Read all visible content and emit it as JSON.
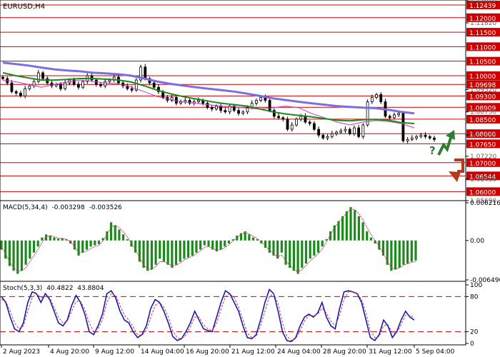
{
  "symbol_header": "EURUSD,H4",
  "macd": {
    "label": "MACD(5,34,4)",
    "main": "-0.003298",
    "signal": "-0.003526",
    "scale": [
      "0.006216",
      "0.00",
      "-0.006496"
    ]
  },
  "stoch": {
    "label": "Stoch(5,3,3)",
    "main": "40.4822",
    "signal": "43.8804",
    "scale": [
      "100",
      "80",
      "20",
      "0"
    ]
  },
  "price_scale": {
    "gray": [
      "1.12610",
      "1.11820",
      "1.09520",
      "1.08750",
      "1.07955",
      "1.07220",
      "1.06430",
      "1.05690"
    ],
    "levels": [
      "1.12439",
      "1.12000",
      "1.11500",
      "1.11000",
      "1.10500",
      "1.10000",
      "1.09698",
      "1.09300",
      "1.08909",
      "1.08500",
      "1.08000",
      "1.07650",
      "1.07000",
      "1.06544",
      "1.06000"
    ]
  },
  "time_axis": [
    "2 Aug 2023",
    "4 Aug 20:00",
    "9 Aug 12:00",
    "14 Aug 04:00",
    "16 Aug 20:00",
    "21 Aug 12:00",
    "24 Aug 04:00",
    "28 Aug 20:00",
    "31 Aug 12:00",
    "5 Sep 04:00"
  ],
  "forecast_mark": "?",
  "colors": {
    "level_line": "#cc0000",
    "level_label_bg": "#cc0000",
    "candle": "#000000",
    "ma_fast": "#cc33cc",
    "ma_mid": "#1a8a1a",
    "ma_slow": "#7b6fe0",
    "macd_hist": "#1a8a1a",
    "macd_signal": "#cc3366",
    "stoch_main": "#1a1aa6",
    "stoch_signal": "#cc3366",
    "arrow_up": "#2e7d32",
    "arrow_down": "#b23a1e"
  },
  "chart_data": [
    {
      "type": "candlestick",
      "title": "EURUSD,H4",
      "x_range": [
        "2 Aug 2023",
        "5 Sep 04:00"
      ],
      "ylim": [
        1.0569,
        1.1261
      ],
      "horizontal_levels": [
        1.12439,
        1.12,
        1.115,
        1.11,
        1.105,
        1.1,
        1.09698,
        1.093,
        1.08909,
        1.085,
        1.08,
        1.0765,
        1.07,
        1.06544,
        1.06
      ],
      "close_approx": [
        1.099,
        1.0975,
        1.0945,
        1.094,
        1.093,
        1.0955,
        1.0965,
        1.098,
        1.101,
        1.099,
        1.0975,
        1.0965,
        1.097,
        1.0955,
        1.0975,
        1.0985,
        1.097,
        1.096,
        1.098,
        1.1,
        1.0985,
        1.097,
        1.0965,
        1.098,
        1.0985,
        1.0995,
        1.0975,
        1.0965,
        1.0955,
        1.095,
        1.0985,
        1.103,
        1.099,
        1.0975,
        1.096,
        1.0945,
        1.0925,
        1.0915,
        1.0925,
        1.0905,
        1.091,
        1.0915,
        1.0905,
        1.091,
        1.0915,
        1.0905,
        1.089,
        1.0885,
        1.0895,
        1.088,
        1.0875,
        1.0895,
        1.088,
        1.087,
        1.0875,
        1.089,
        1.0905,
        1.0915,
        1.0925,
        1.0915,
        1.088,
        1.086,
        1.0855,
        1.085,
        1.0815,
        1.083,
        1.085,
        1.086,
        1.084,
        1.0835,
        1.0815,
        1.0795,
        1.0785,
        1.079,
        1.08,
        1.0805,
        1.081,
        1.0815,
        1.08,
        1.082,
        1.079,
        1.083,
        1.091,
        1.0925,
        1.0935,
        1.091,
        1.086,
        1.0855,
        1.0865,
        1.087,
        1.0775,
        1.078,
        1.0785,
        1.079,
        1.0795,
        1.079,
        1.0785,
        1.078
      ],
      "moving_averages": [
        {
          "color": "#cc33cc",
          "values": [
            1.0985,
            1.0979,
            1.097,
            1.096,
            1.097,
            1.0978,
            1.0985,
            1.098,
            1.0975,
            1.0972,
            1.096,
            1.0945,
            1.0928,
            1.0918,
            1.091,
            1.0905,
            1.09,
            1.0895,
            1.0893,
            1.0888,
            1.0885,
            1.089,
            1.0895,
            1.089,
            1.087,
            1.0855,
            1.084,
            1.083,
            1.084,
            1.0845,
            1.0842,
            1.0835,
            1.082
          ]
        },
        {
          "color": "#1a8a1a",
          "values": [
            1.101,
            1.1,
            1.0992,
            1.0985,
            1.0985,
            1.0987,
            1.099,
            1.099,
            1.0988,
            1.0985,
            1.0978,
            1.0965,
            1.095,
            1.0938,
            1.0928,
            1.092,
            1.0912,
            1.0905,
            1.09,
            1.0895,
            1.0885,
            1.0875,
            1.0868,
            1.0863,
            1.0858,
            1.0852,
            1.0846,
            1.0844,
            1.0848,
            1.0849,
            1.0846,
            1.0838,
            1.0835
          ]
        },
        {
          "color": "#7b6fe0",
          "values": [
            1.1045,
            1.104,
            1.1035,
            1.1028,
            1.1022,
            1.1018,
            1.1015,
            1.101,
            1.1008,
            1.1005,
            1.1,
            1.099,
            1.098,
            1.0972,
            1.0966,
            1.096,
            1.0955,
            1.095,
            1.0945,
            1.0938,
            1.093,
            1.0922,
            1.0916,
            1.091,
            1.0905,
            1.09,
            1.0895,
            1.0892,
            1.089,
            1.0888,
            1.0882,
            1.0875,
            1.087
          ]
        }
      ]
    },
    {
      "type": "bar",
      "title": "MACD(5,34,4)",
      "ylim": [
        -0.006496,
        0.006216
      ],
      "values": [
        -0.0015,
        -0.003,
        -0.0042,
        -0.005,
        -0.0055,
        -0.005,
        -0.004,
        -0.003,
        -0.002,
        -0.001,
        0.0005,
        0.001,
        0.0008,
        0.0005,
        0.0003,
        0.0004,
        0.0002,
        -0.0005,
        -0.0015,
        -0.0025,
        -0.002,
        -0.0015,
        -0.001,
        -0.0008,
        -0.0006,
        0.0004,
        0.0015,
        0.003,
        0.0025,
        0.0018,
        0.001,
        0.0002,
        -0.001,
        -0.002,
        -0.0035,
        -0.0045,
        -0.005,
        -0.0048,
        -0.004,
        -0.003,
        -0.0035,
        -0.004,
        -0.0045,
        -0.004,
        -0.0035,
        -0.003,
        -0.0028,
        -0.0025,
        -0.002,
        -0.0015,
        -0.0008,
        -0.001,
        -0.0015,
        -0.0018,
        -0.0015,
        -0.001,
        -0.0005,
        0.0002,
        0.0008,
        0.0012,
        0.0015,
        0.001,
        0.0005,
        0.0002,
        -0.0005,
        -0.0012,
        -0.002,
        -0.0025,
        -0.003,
        -0.002,
        -0.004,
        -0.0045,
        -0.005,
        -0.0055,
        -0.0045,
        -0.0038,
        -0.003,
        -0.0025,
        -0.002,
        -0.001,
        0.0002,
        0.0015,
        0.0025,
        0.0032,
        0.004,
        0.0048,
        0.0055,
        0.005,
        0.004,
        0.003,
        0.0015,
        0.0005,
        -0.0005,
        -0.0015,
        -0.0025,
        -0.004,
        -0.005,
        -0.0048,
        -0.0045,
        -0.004,
        -0.0038,
        -0.0035,
        -0.0033
      ],
      "signal": [
        -0.001,
        -0.0022,
        -0.0035,
        -0.0045,
        -0.005,
        -0.005,
        -0.0045,
        -0.0035,
        -0.0025,
        -0.0015,
        -0.0003,
        0.0006,
        0.0008,
        0.0006,
        0.0004,
        0.0003,
        0.0002,
        -0.0002,
        -0.001,
        -0.002,
        -0.002,
        -0.0017,
        -0.0013,
        -0.001,
        -0.0008,
        -0.0001,
        0.001,
        0.0022,
        0.0025,
        0.0021,
        0.0014,
        0.0006,
        -0.0004,
        -0.0015,
        -0.0028,
        -0.004,
        -0.0047,
        -0.0048,
        -0.0043,
        -0.0035,
        -0.0035,
        -0.0038,
        -0.0042,
        -0.0041,
        -0.0037,
        -0.0032,
        -0.0029,
        -0.0026,
        -0.0022,
        -0.0017,
        -0.0011,
        -0.001,
        -0.0013,
        -0.0016,
        -0.0015,
        -0.0012,
        -0.0007,
        -0.0001,
        0.0005,
        0.001,
        0.0013,
        0.0011,
        0.0007,
        0.0003,
        -0.0002,
        -0.0009,
        -0.0016,
        -0.0022,
        -0.0027,
        -0.0024,
        -0.0033,
        -0.0041,
        -0.0047,
        -0.0052,
        -0.0048,
        -0.0041,
        -0.0034,
        -0.0028,
        -0.0022,
        -0.0014,
        -0.0003,
        0.001,
        0.0021,
        0.0029,
        0.0037,
        0.0045,
        0.0052,
        0.0051,
        0.0044,
        0.0034,
        0.0021,
        0.001,
        0.0,
        -0.001,
        -0.0021,
        -0.0034,
        -0.0045,
        -0.0047,
        -0.0045,
        -0.0041,
        -0.0038,
        -0.0036,
        -0.0035
      ]
    },
    {
      "type": "line",
      "title": "Stoch(5,3,3)",
      "ylim": [
        0,
        100
      ],
      "levels": [
        80,
        20
      ],
      "series": [
        {
          "color": "#1a1aa6",
          "values": [
            80,
            70,
            45,
            25,
            20,
            35,
            70,
            88,
            85,
            70,
            85,
            75,
            55,
            35,
            30,
            40,
            65,
            82,
            70,
            50,
            20,
            15,
            30,
            50,
            85,
            90,
            78,
            55,
            40,
            35,
            20,
            10,
            15,
            30,
            60,
            75,
            70,
            55,
            35,
            12,
            5,
            8,
            20,
            35,
            55,
            40,
            25,
            22,
            20,
            45,
            70,
            90,
            85,
            70,
            55,
            30,
            10,
            8,
            15,
            40,
            70,
            92,
            85,
            55,
            20,
            5,
            3,
            10,
            30,
            45,
            50,
            45,
            52,
            70,
            45,
            30,
            25,
            60,
            88,
            90,
            88,
            85,
            70,
            40,
            10,
            5,
            15,
            40,
            30,
            10,
            20,
            40,
            55,
            45,
            40
          ]
        },
        {
          "color": "#cc3366",
          "values": [
            75,
            72,
            55,
            35,
            25,
            30,
            55,
            78,
            85,
            78,
            80,
            78,
            62,
            45,
            35,
            38,
            55,
            72,
            72,
            58,
            35,
            20,
            25,
            40,
            70,
            85,
            82,
            65,
            48,
            40,
            28,
            15,
            14,
            22,
            45,
            65,
            70,
            62,
            45,
            22,
            10,
            8,
            14,
            28,
            45,
            45,
            32,
            25,
            22,
            35,
            58,
            80,
            85,
            78,
            62,
            40,
            18,
            10,
            12,
            30,
            55,
            80,
            85,
            68,
            35,
            12,
            5,
            8,
            22,
            38,
            48,
            47,
            50,
            60,
            52,
            38,
            30,
            48,
            75,
            88,
            88,
            86,
            75,
            52,
            22,
            10,
            12,
            30,
            32,
            18,
            18,
            32,
            48,
            48,
            44
          ]
        }
      ]
    }
  ]
}
